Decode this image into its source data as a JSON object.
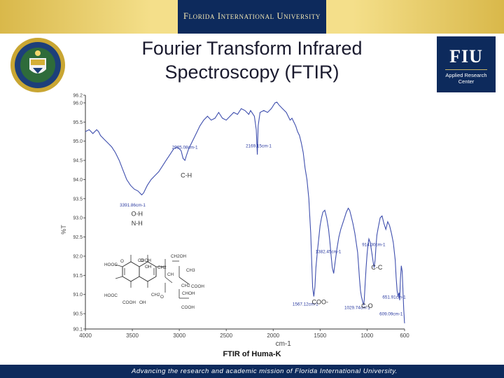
{
  "header": {
    "university": "Florida International University"
  },
  "title": {
    "line1": "Fourier Transform Infrared",
    "line2": "Spectroscopy (FTIR)"
  },
  "logos": {
    "left": "department-of-energy-seal",
    "right": {
      "name": "FIU",
      "subtitle_line1": "Applied Research",
      "subtitle_line2": "Center"
    }
  },
  "caption": "FTIR of Huma-K",
  "footer": "Advancing the research and academic mission of Florida International University.",
  "colors": {
    "navy": "#0d2a5c",
    "gold": "#e8cf72",
    "spectrum": "#3f4fae",
    "annotation": "#2a3aa0"
  },
  "chart_data": {
    "type": "line",
    "xlabel": "cm-1",
    "ylabel": "%T",
    "xlim": [
      4000,
      600
    ],
    "ylim": [
      90.1,
      96.2
    ],
    "xticks": [
      4000,
      3500,
      3000,
      2500,
      2000,
      1500,
      1000,
      600
    ],
    "yticks": [
      96.2,
      96.0,
      95.5,
      95.0,
      94.5,
      94.0,
      93.5,
      93.0,
      92.5,
      92.0,
      91.5,
      91.0,
      90.5,
      90.1
    ],
    "series": [
      {
        "x": [
          4000,
          3960,
          3920,
          3880,
          3860,
          3840,
          3800,
          3760,
          3720,
          3680,
          3640,
          3600,
          3560,
          3520,
          3480,
          3440,
          3400,
          3380,
          3360,
          3340,
          3300,
          3260,
          3220,
          3180,
          3140,
          3100,
          3060,
          3020,
          2980,
          2960,
          2940,
          2925,
          2900,
          2860,
          2820,
          2780,
          2740,
          2700,
          2660,
          2620,
          2580,
          2540,
          2500,
          2460,
          2420,
          2380,
          2340,
          2300,
          2260,
          2240,
          2200,
          2180,
          2169,
          2160,
          2140,
          2100,
          2060,
          2020,
          1980,
          1960,
          1940,
          1900,
          1860,
          1820,
          1800,
          1780,
          1760,
          1740,
          1720,
          1700,
          1680,
          1660,
          1640,
          1620,
          1610,
          1600,
          1590,
          1580,
          1567,
          1555,
          1545,
          1530,
          1515,
          1500,
          1485,
          1470,
          1450,
          1430,
          1410,
          1395,
          1382,
          1370,
          1355,
          1340,
          1320,
          1300,
          1280,
          1260,
          1240,
          1220,
          1200,
          1185,
          1170,
          1150,
          1130,
          1115,
          1100,
          1090,
          1080,
          1070,
          1060,
          1045,
          1035,
          1029,
          1020,
          1010,
          1000,
          990,
          980,
          965,
          950,
          935,
          925,
          914,
          905,
          895,
          880,
          860,
          840,
          820,
          800,
          780,
          760,
          740,
          720,
          700,
          690,
          680,
          670,
          660,
          652,
          645,
          635,
          625,
          615,
          609,
          605,
          602,
          600
        ],
        "y": [
          95.25,
          95.3,
          95.2,
          95.3,
          95.25,
          95.15,
          95.05,
          94.95,
          94.85,
          94.7,
          94.5,
          94.25,
          94.0,
          93.85,
          93.75,
          93.7,
          93.6,
          93.65,
          93.75,
          93.85,
          94.0,
          94.1,
          94.2,
          94.35,
          94.5,
          94.65,
          94.8,
          94.85,
          94.75,
          94.55,
          94.5,
          94.62,
          94.8,
          95.0,
          95.2,
          95.4,
          95.55,
          95.65,
          95.55,
          95.6,
          95.75,
          95.6,
          95.55,
          95.65,
          95.75,
          95.7,
          95.85,
          95.8,
          95.7,
          95.8,
          95.65,
          95.3,
          94.65,
          95.4,
          95.75,
          95.8,
          95.75,
          95.85,
          96.0,
          96.02,
          95.95,
          95.85,
          95.75,
          95.55,
          95.6,
          95.5,
          95.4,
          95.25,
          95.15,
          94.95,
          94.7,
          94.3,
          94.0,
          93.5,
          93.05,
          92.6,
          91.9,
          91.2,
          90.95,
          91.2,
          91.7,
          92.1,
          92.45,
          92.8,
          93.0,
          93.15,
          93.2,
          93.0,
          92.7,
          92.35,
          92.0,
          91.7,
          91.55,
          91.85,
          92.2,
          92.5,
          92.7,
          92.85,
          93.0,
          93.15,
          93.25,
          93.2,
          93.05,
          92.85,
          92.6,
          92.35,
          92.1,
          91.75,
          91.4,
          91.1,
          90.95,
          90.8,
          90.72,
          90.9,
          91.3,
          91.7,
          92.05,
          92.3,
          92.45,
          92.35,
          92.1,
          91.85,
          91.7,
          91.9,
          92.25,
          92.55,
          92.75,
          93.0,
          93.05,
          92.85,
          92.7,
          92.9,
          92.8,
          92.6,
          92.35,
          91.9,
          91.45,
          91.1,
          90.95,
          91.05,
          90.85,
          91.4,
          91.75,
          91.6,
          90.95,
          90.6,
          90.45,
          90.3,
          90.25
        ]
      }
    ],
    "peak_labels": [
      {
        "text": "3391.86cm-1",
        "x": 3391.86
      },
      {
        "text": "2925.08cm-1",
        "x": 2925.08
      },
      {
        "text": "2169.15cm-1",
        "x": 2169.15
      },
      {
        "text": "1567.12cm-1",
        "x": 1567.12
      },
      {
        "text": "1382.45cm-1",
        "x": 1382.45
      },
      {
        "text": "1029.74cm-1",
        "x": 1029.74
      },
      {
        "text": "914.30cm-1",
        "x": 914.3
      },
      {
        "text": "651.91cm-1",
        "x": 651.91
      },
      {
        "text": "609.09cm-1",
        "x": 609.09
      }
    ],
    "group_labels": [
      "C-H",
      "O-H",
      "N-H",
      "C-C",
      "COO-",
      "C-O"
    ],
    "structure_labels": [
      "HOOC",
      "HOOC",
      "COOH",
      "COOH",
      "COOH",
      "COOH",
      "CH2OH",
      "CH2",
      "CH",
      "CH3",
      "CH2",
      "CH2",
      "CHOH",
      "OH",
      "OH",
      "O",
      "O",
      "O"
    ]
  }
}
